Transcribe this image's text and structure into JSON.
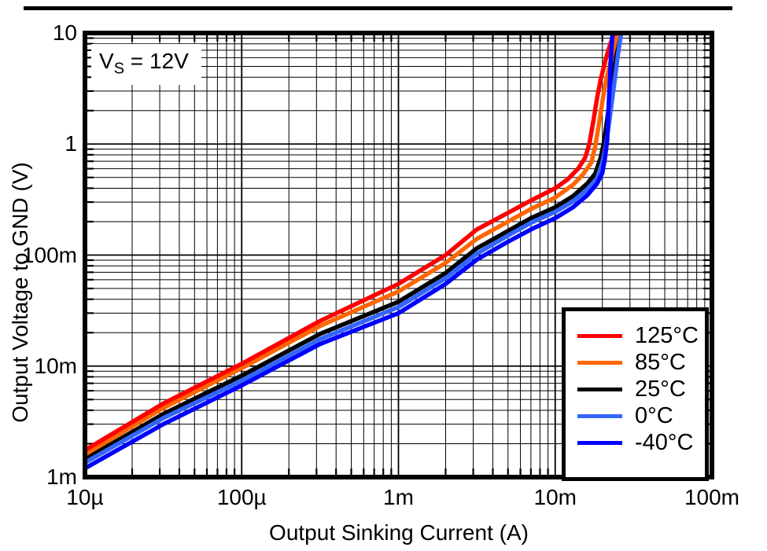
{
  "chart_data": {
    "type": "line",
    "title": "",
    "xlabel": "Output Sinking Current (A)",
    "ylabel": "Output Voltage to GND (V)",
    "x_scale": "log",
    "y_scale": "log",
    "xlim": [
      1e-05,
      0.1
    ],
    "ylim": [
      0.001,
      10
    ],
    "grid": "full log grid with minor lines",
    "legend_position": "lower-right",
    "annotation": {
      "var": "V",
      "sub": "S",
      "rest": " = 12V"
    },
    "x_ticks": [
      {
        "value": 1e-05,
        "label": "10µ"
      },
      {
        "value": 0.0001,
        "label": "100µ"
      },
      {
        "value": 0.001,
        "label": "1m"
      },
      {
        "value": 0.01,
        "label": "10m"
      },
      {
        "value": 0.1,
        "label": "100m"
      }
    ],
    "y_ticks": [
      {
        "value": 10,
        "label": "10"
      },
      {
        "value": 1,
        "label": "1"
      },
      {
        "value": 0.1,
        "label": "100m"
      },
      {
        "value": 0.01,
        "label": "10m"
      },
      {
        "value": 0.001,
        "label": "1m"
      }
    ],
    "series": [
      {
        "name": "125°C",
        "color": "#FF0000",
        "points": [
          [
            1e-05,
            0.00175
          ],
          [
            3.16e-05,
            0.0046
          ],
          [
            0.0001,
            0.0105
          ],
          [
            0.000316,
            0.0255
          ],
          [
            0.001,
            0.055
          ],
          [
            0.002,
            0.1
          ],
          [
            0.00316,
            0.17
          ],
          [
            0.005,
            0.24
          ],
          [
            0.007,
            0.31
          ],
          [
            0.01,
            0.4
          ],
          [
            0.012,
            0.48
          ],
          [
            0.014,
            0.6
          ],
          [
            0.0155,
            0.75
          ],
          [
            0.0165,
            1.0
          ],
          [
            0.0175,
            1.6
          ],
          [
            0.0185,
            2.6
          ],
          [
            0.0195,
            3.8
          ],
          [
            0.021,
            5.8
          ],
          [
            0.0225,
            8.0
          ],
          [
            0.024,
            10.5
          ]
        ]
      },
      {
        "name": "85°C",
        "color": "#FF6600",
        "points": [
          [
            1e-05,
            0.0016
          ],
          [
            3.16e-05,
            0.0042
          ],
          [
            0.0001,
            0.0096
          ],
          [
            0.000316,
            0.023
          ],
          [
            0.001,
            0.047
          ],
          [
            0.002,
            0.085
          ],
          [
            0.00316,
            0.14
          ],
          [
            0.005,
            0.2
          ],
          [
            0.007,
            0.26
          ],
          [
            0.01,
            0.33
          ],
          [
            0.013,
            0.43
          ],
          [
            0.015,
            0.53
          ],
          [
            0.017,
            0.68
          ],
          [
            0.018,
            0.95
          ],
          [
            0.019,
            1.5
          ],
          [
            0.02,
            2.4
          ],
          [
            0.021,
            3.6
          ],
          [
            0.0225,
            5.5
          ],
          [
            0.024,
            8.0
          ],
          [
            0.025,
            10.5
          ]
        ]
      },
      {
        "name": "25°C",
        "color": "#000000",
        "points": [
          [
            1e-05,
            0.00145
          ],
          [
            3.16e-05,
            0.0037
          ],
          [
            0.0001,
            0.0082
          ],
          [
            0.000316,
            0.0195
          ],
          [
            0.001,
            0.038
          ],
          [
            0.002,
            0.069
          ],
          [
            0.00316,
            0.115
          ],
          [
            0.005,
            0.165
          ],
          [
            0.007,
            0.215
          ],
          [
            0.01,
            0.27
          ],
          [
            0.013,
            0.34
          ],
          [
            0.016,
            0.44
          ],
          [
            0.018,
            0.54
          ],
          [
            0.0195,
            0.75
          ],
          [
            0.0205,
            1.05
          ],
          [
            0.0215,
            1.7
          ],
          [
            0.0225,
            2.7
          ],
          [
            0.0235,
            4.2
          ],
          [
            0.0245,
            6.3
          ],
          [
            0.0255,
            8.6
          ],
          [
            0.026,
            10.5
          ]
        ]
      },
      {
        "name": "0°C",
        "color": "#3366FF",
        "points": [
          [
            1e-05,
            0.00135
          ],
          [
            3.16e-05,
            0.0034
          ],
          [
            0.0001,
            0.0074
          ],
          [
            0.000316,
            0.0175
          ],
          [
            0.001,
            0.034
          ],
          [
            0.002,
            0.062
          ],
          [
            0.00316,
            0.103
          ],
          [
            0.005,
            0.15
          ],
          [
            0.007,
            0.195
          ],
          [
            0.01,
            0.245
          ],
          [
            0.013,
            0.305
          ],
          [
            0.016,
            0.39
          ],
          [
            0.0185,
            0.49
          ],
          [
            0.02,
            0.68
          ],
          [
            0.021,
            0.95
          ],
          [
            0.022,
            1.5
          ],
          [
            0.023,
            2.4
          ],
          [
            0.024,
            3.8
          ],
          [
            0.025,
            6.0
          ],
          [
            0.026,
            8.8
          ],
          [
            0.0266,
            10.5
          ]
        ]
      },
      {
        "name": "-40°C",
        "color": "#0000FF",
        "points": [
          [
            1e-05,
            0.0012
          ],
          [
            3.16e-05,
            0.003
          ],
          [
            0.0001,
            0.0067
          ],
          [
            0.000316,
            0.0158
          ],
          [
            0.001,
            0.03
          ],
          [
            0.002,
            0.055
          ],
          [
            0.00316,
            0.091
          ],
          [
            0.005,
            0.132
          ],
          [
            0.007,
            0.17
          ],
          [
            0.01,
            0.215
          ],
          [
            0.013,
            0.27
          ],
          [
            0.016,
            0.345
          ],
          [
            0.0185,
            0.44
          ],
          [
            0.02,
            0.55
          ],
          [
            0.0208,
            0.75
          ],
          [
            0.0215,
            1.1
          ],
          [
            0.0218,
            1.9
          ],
          [
            0.0222,
            3.2
          ],
          [
            0.0226,
            5.5
          ],
          [
            0.023,
            8.0
          ],
          [
            0.0232,
            10.5
          ]
        ]
      }
    ]
  }
}
